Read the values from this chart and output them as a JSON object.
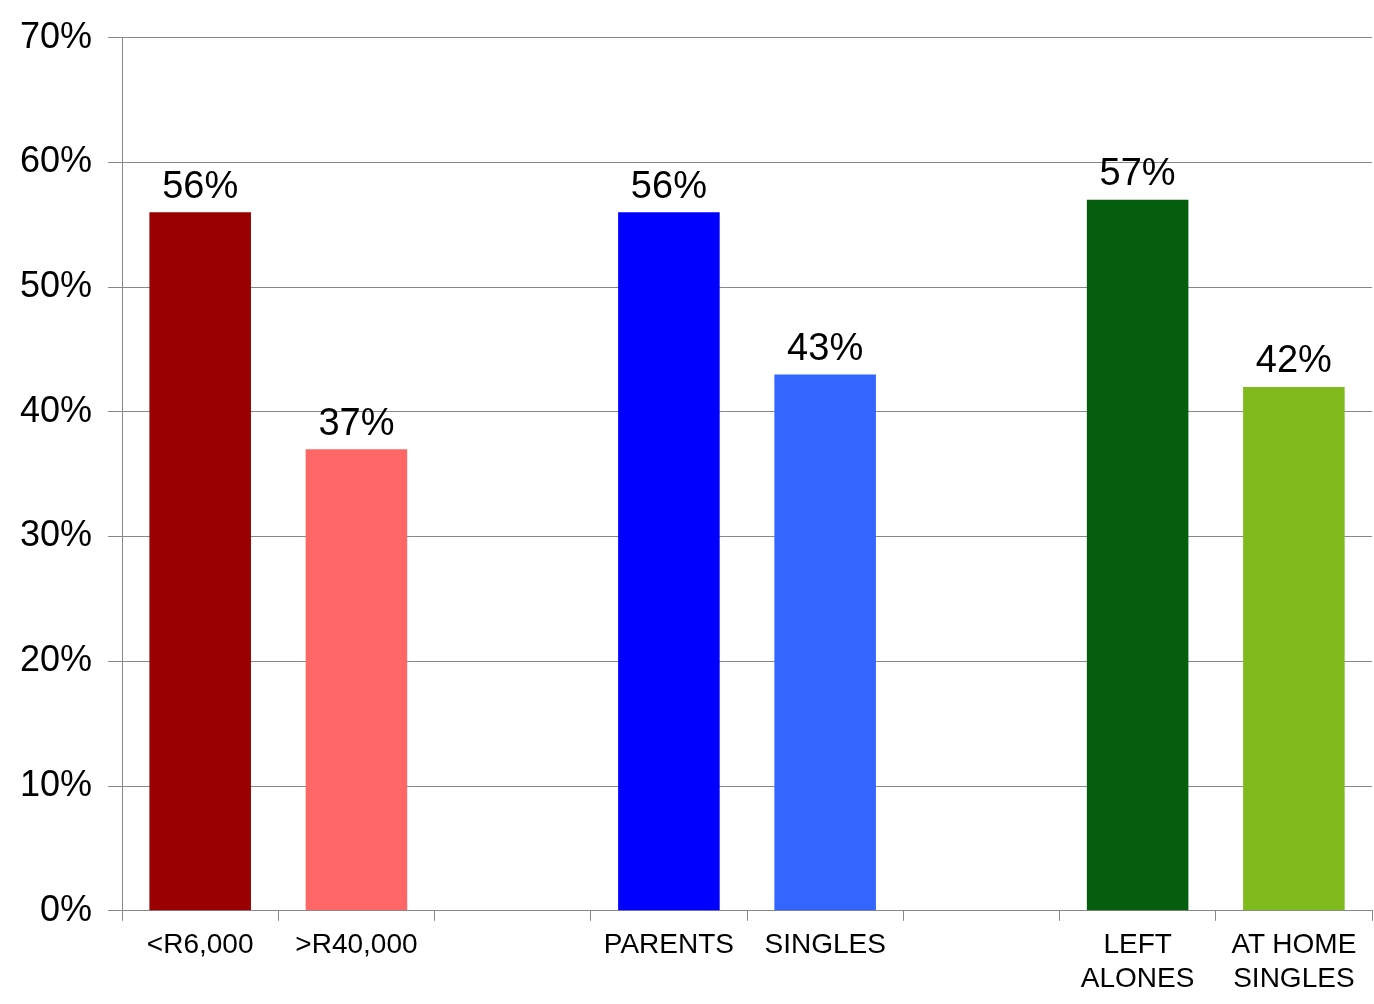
{
  "chart_data": {
    "type": "bar",
    "categories": [
      "<R6,000",
      ">R40,000",
      null,
      "PARENTS",
      "SINGLES",
      null,
      "LEFT ALONES",
      "AT HOME SINGLES"
    ],
    "values": [
      56,
      37,
      null,
      56,
      43,
      null,
      57,
      42
    ],
    "colors": [
      "#990000",
      "#ff6666",
      "#000000",
      "#0000ff",
      "#3366ff",
      "#000000",
      "#055e0e",
      "#80bb1e"
    ],
    "ylim": [
      0,
      70
    ],
    "yticks": [
      {
        "value": 0,
        "label": "0%"
      },
      {
        "value": 10,
        "label": "10%"
      },
      {
        "value": 20,
        "label": "20%"
      },
      {
        "value": 30,
        "label": "30%"
      },
      {
        "value": 40,
        "label": "40%"
      },
      {
        "value": 50,
        "label": "50%"
      },
      {
        "value": 60,
        "label": "60%"
      },
      {
        "value": 70,
        "label": "70%"
      }
    ],
    "value_labels": [
      "56%",
      "37%",
      null,
      "56%",
      "43%",
      null,
      "57%",
      "42%"
    ],
    "grid": "y"
  }
}
